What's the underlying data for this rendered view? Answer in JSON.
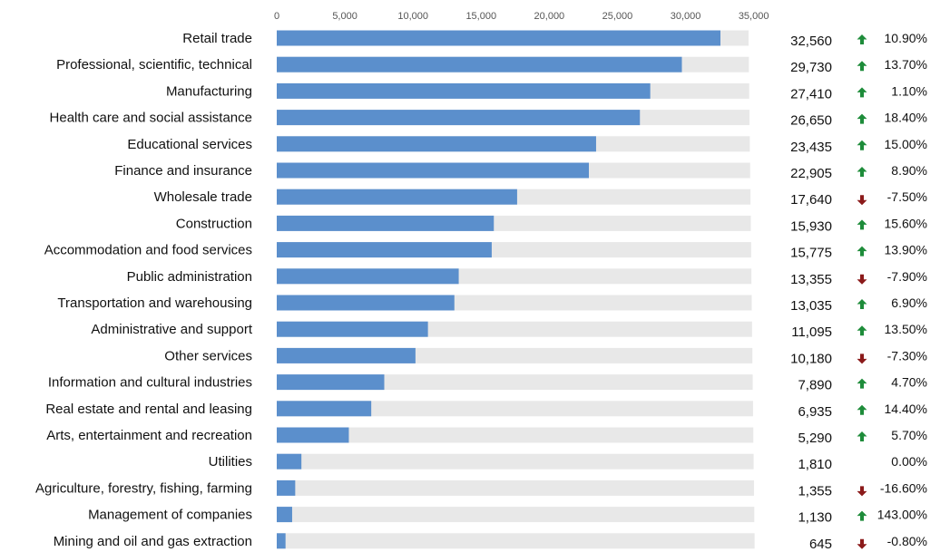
{
  "chart_data": {
    "type": "bar",
    "orientation": "horizontal",
    "xlim": [
      0,
      35000
    ],
    "x_ticks": [
      "0",
      "5,000",
      "10,000",
      "15,000",
      "20,000",
      "25,000",
      "30,000",
      "35,000"
    ],
    "colors": {
      "bar": "#5b8fcc",
      "track": "#e8e8e8",
      "up": "#1e8c3a",
      "down": "#8b1a1a"
    },
    "categories": [
      "Retail trade",
      "Professional, scientific, technical",
      "Manufacturing",
      "Health care and social assistance",
      "Educational services",
      "Finance and insurance",
      "Wholesale trade",
      "Construction",
      "Accommodation and food services",
      "Public administration",
      "Transportation and warehousing",
      "Administrative and support",
      "Other services",
      "Information and cultural industries",
      "Real estate and rental and leasing",
      "Arts, entertainment and recreation",
      "Utilities",
      "Agriculture, forestry, fishing, farming",
      "Management of companies",
      "Mining and oil and gas extraction"
    ],
    "values": [
      32560,
      29730,
      27410,
      26650,
      23435,
      22905,
      17640,
      15930,
      15775,
      13355,
      13035,
      11095,
      10180,
      7890,
      6935,
      5290,
      1810,
      1355,
      1130,
      645
    ],
    "value_labels": [
      "32,560",
      "29,730",
      "27,410",
      "26,650",
      "23,435",
      "22,905",
      "17,640",
      "15,930",
      "15,775",
      "13,355",
      "13,035",
      "11,095",
      "10,180",
      "7,890",
      "6,935",
      "5,290",
      "1,810",
      "1,355",
      "1,130",
      "645"
    ],
    "changes": [
      "10.90%",
      "13.70%",
      "1.10%",
      "18.40%",
      "15.00%",
      "8.90%",
      "-7.50%",
      "15.60%",
      "13.90%",
      "-7.90%",
      "6.90%",
      "13.50%",
      "-7.30%",
      "4.70%",
      "14.40%",
      "5.70%",
      "0.00%",
      "-16.60%",
      "143.00%",
      "-0.80%"
    ],
    "trend": [
      "up",
      "up",
      "up",
      "up",
      "up",
      "up",
      "down",
      "up",
      "up",
      "down",
      "up",
      "up",
      "down",
      "up",
      "up",
      "up",
      "none",
      "down",
      "up",
      "down"
    ]
  }
}
